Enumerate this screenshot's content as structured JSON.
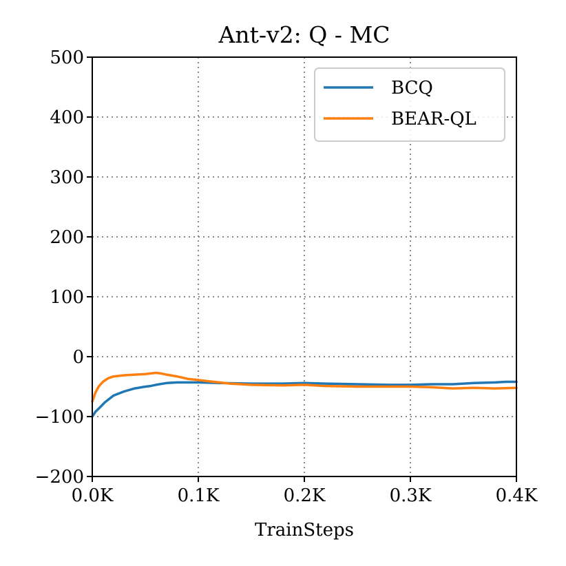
{
  "chart_data": {
    "type": "line",
    "title": "Ant-v2: Q - MC",
    "xlabel": "TrainSteps",
    "ylabel": "",
    "xlim": [
      0,
      0.4
    ],
    "ylim": [
      -200,
      500
    ],
    "xticks": [
      0,
      0.1,
      0.2,
      0.3,
      0.4
    ],
    "xtick_labels": [
      "0.0K",
      "0.1K",
      "0.2K",
      "0.3K",
      "0.4K"
    ],
    "yticks": [
      -200,
      -100,
      0,
      100,
      200,
      300,
      400,
      500
    ],
    "ytick_labels": [
      "−200",
      "−100",
      "0",
      "100",
      "200",
      "300",
      "400",
      "500"
    ],
    "grid": true,
    "legend_position": "top-right",
    "series": [
      {
        "name": "BCQ",
        "color": "#1f77b4",
        "x": [
          0,
          0.003,
          0.007,
          0.012,
          0.02,
          0.03,
          0.04,
          0.05,
          0.055,
          0.06,
          0.07,
          0.08,
          0.1,
          0.12,
          0.15,
          0.18,
          0.2,
          0.22,
          0.25,
          0.28,
          0.3,
          0.32,
          0.34,
          0.36,
          0.38,
          0.39,
          0.4
        ],
        "values": [
          -100,
          -92,
          -85,
          -76,
          -65,
          -58,
          -53,
          -50,
          -49,
          -47,
          -44,
          -43,
          -43,
          -44,
          -45,
          -45,
          -44,
          -45,
          -46,
          -47,
          -47,
          -46,
          -46,
          -44,
          -43,
          -42,
          -42
        ]
      },
      {
        "name": "BEAR-QL",
        "color": "#ff7f0e",
        "x": [
          0,
          0.003,
          0.006,
          0.01,
          0.015,
          0.02,
          0.03,
          0.04,
          0.05,
          0.06,
          0.065,
          0.07,
          0.08,
          0.09,
          0.1,
          0.11,
          0.12,
          0.13,
          0.15,
          0.18,
          0.2,
          0.22,
          0.25,
          0.28,
          0.3,
          0.32,
          0.34,
          0.36,
          0.38,
          0.4
        ],
        "values": [
          -75,
          -60,
          -50,
          -42,
          -36,
          -33,
          -31,
          -30,
          -29,
          -27,
          -28,
          -30,
          -33,
          -37,
          -39,
          -41,
          -43,
          -45,
          -47,
          -48,
          -47,
          -49,
          -50,
          -50,
          -50,
          -51,
          -53,
          -52,
          -53,
          -52
        ]
      }
    ]
  }
}
